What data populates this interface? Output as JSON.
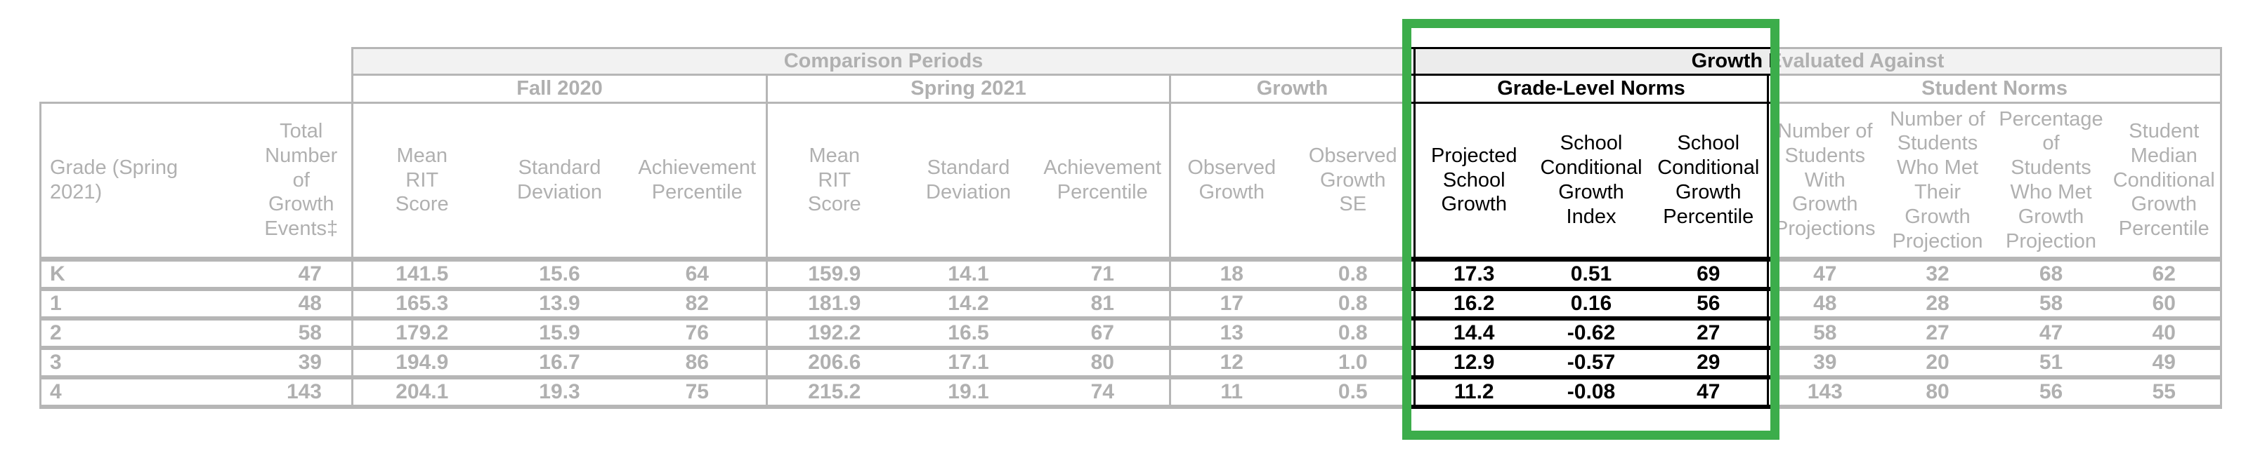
{
  "highlight": {
    "border_color": "#3cad4b"
  },
  "table": {
    "groups": {
      "comparison_periods": "Comparison Periods",
      "growth_evaluated_against": "Growth Evaluated Against",
      "fall_2020": "Fall 2020",
      "spring_2021": "Spring 2021",
      "growth": "Growth",
      "grade_level_norms": "Grade-Level Norms",
      "student_norms": "Student Norms"
    },
    "columns": [
      {
        "id": "grade",
        "label": "Grade  (Spring 2021)"
      },
      {
        "id": "total-growth-events",
        "label": "Total\nNumber\nof\nGrowth\nEvents‡"
      },
      {
        "id": "fall-mean-rit",
        "label": "Mean\nRIT\nScore"
      },
      {
        "id": "fall-standard-deviation",
        "label": "Standard\nDeviation"
      },
      {
        "id": "fall-achievement-percentile",
        "label": "Achievement\nPercentile"
      },
      {
        "id": "spring-mean-rit",
        "label": "Mean\nRIT\nScore"
      },
      {
        "id": "spring-standard-deviation",
        "label": "Standard\nDeviation"
      },
      {
        "id": "spring-achievement-percentile",
        "label": "Achievement\nPercentile"
      },
      {
        "id": "observed-growth",
        "label": "Observed\nGrowth"
      },
      {
        "id": "observed-growth-se",
        "label": "Observed\nGrowth\nSE"
      },
      {
        "id": "projected-school-growth",
        "label": "Projected\nSchool\nGrowth"
      },
      {
        "id": "school-conditional-growth-index",
        "label": "School\nConditional\nGrowth\nIndex"
      },
      {
        "id": "school-conditional-growth-percentile",
        "label": "School\nConditional\nGrowth\nPercentile"
      },
      {
        "id": "students-with-growth-projections",
        "label": "Number of\nStudents\nWith\nGrowth\nProjections"
      },
      {
        "id": "students-met-growth-projection",
        "label": "Number of\nStudents\nWho Met\nTheir\nGrowth\nProjection"
      },
      {
        "id": "percentage-met-growth-projection",
        "label": "Percentage\nof\nStudents\nWho Met\nGrowth\nProjection"
      },
      {
        "id": "student-median-conditional-growth-percentile",
        "label": "Student\nMedian\nConditional\nGrowth\nPercentile"
      }
    ],
    "rows": [
      {
        "cells": [
          "K",
          "47",
          "141.5",
          "15.6",
          "64",
          "159.9",
          "14.1",
          "71",
          "18",
          "0.8",
          "17.3",
          "0.51",
          "69",
          "47",
          "32",
          "68",
          "62"
        ]
      },
      {
        "cells": [
          "1",
          "48",
          "165.3",
          "13.9",
          "82",
          "181.9",
          "14.2",
          "81",
          "17",
          "0.8",
          "16.2",
          "0.16",
          "56",
          "48",
          "28",
          "58",
          "60"
        ]
      },
      {
        "cells": [
          "2",
          "58",
          "179.2",
          "15.9",
          "76",
          "192.2",
          "16.5",
          "67",
          "13",
          "0.8",
          "14.4",
          "-0.62",
          "27",
          "58",
          "27",
          "47",
          "40"
        ]
      },
      {
        "cells": [
          "3",
          "39",
          "194.9",
          "16.7",
          "86",
          "206.6",
          "17.1",
          "80",
          "12",
          "1.0",
          "12.9",
          "-0.57",
          "29",
          "39",
          "20",
          "51",
          "49"
        ]
      },
      {
        "cells": [
          "4",
          "143",
          "204.1",
          "19.3",
          "75",
          "215.2",
          "19.1",
          "74",
          "11",
          "0.5",
          "11.2",
          "-0.08",
          "47",
          "143",
          "80",
          "56",
          "55"
        ]
      }
    ]
  }
}
